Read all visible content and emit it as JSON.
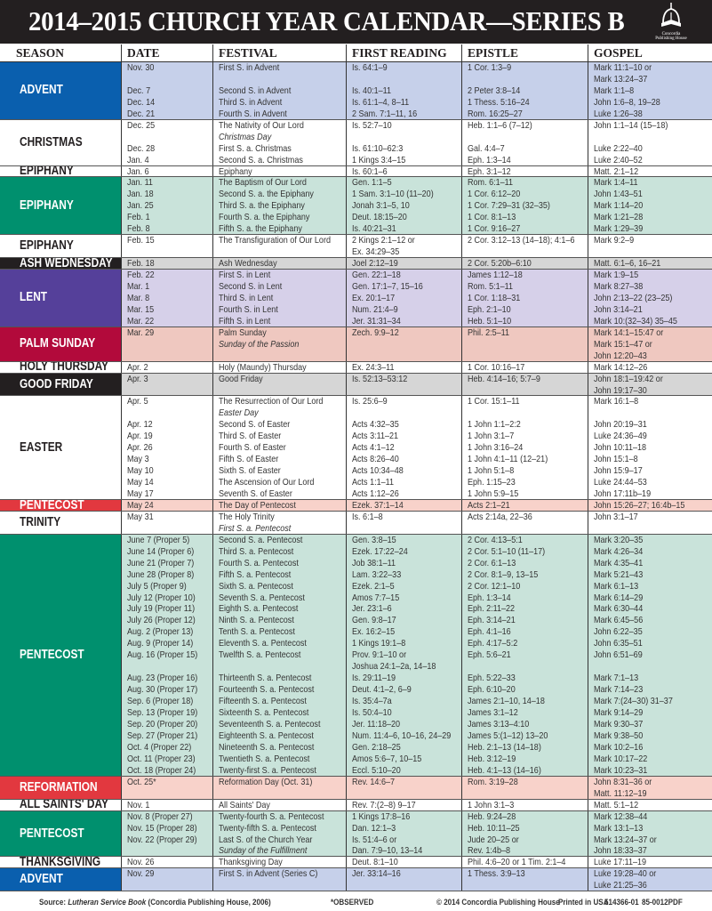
{
  "header": {
    "title": "2014–2015 CHURCH YEAR CALENDAR—SERIES B",
    "logo_text": "Concordia Publishing House"
  },
  "columns": [
    "SEASON",
    "DATE",
    "FESTIVAL",
    "FIRST READING",
    "EPISTLE",
    "GOSPEL"
  ],
  "themes": {
    "advent": {
      "season_bg": "#0a5fae",
      "season_fg": "#ffffff",
      "row_bg": "#c6d0ea"
    },
    "white": {
      "season_bg": "#ffffff",
      "season_fg": "#231f20",
      "row_bg": "#ffffff"
    },
    "green": {
      "season_bg": "#00906e",
      "season_fg": "#ffffff",
      "row_bg": "#c9e3da"
    },
    "black": {
      "season_bg": "#231f20",
      "season_fg": "#ffffff",
      "row_bg": "#d6d6d6"
    },
    "lent": {
      "season_bg": "#55409a",
      "season_fg": "#ffffff",
      "row_bg": "#d6d0e9"
    },
    "palm": {
      "season_bg": "#b20a3b",
      "season_fg": "#ffffff",
      "row_bg": "#efc8c0"
    },
    "red": {
      "season_bg": "#e2383f",
      "season_fg": "#ffffff",
      "row_bg": "#f8d2ca"
    }
  },
  "sections": [
    {
      "season": "ADVENT",
      "theme": "advent",
      "dates": [
        "Nov. 30",
        "",
        "Dec. 7",
        "Dec. 14",
        "Dec. 21"
      ],
      "festivals": [
        "First S. in Advent",
        "",
        "Second S. in Advent",
        "Third S. in Advent",
        "Fourth S. in Advent"
      ],
      "first_reading": [
        "Is. 64:1–9",
        "",
        "Is. 40:1–11",
        "Is. 61:1–4, 8–11",
        "2 Sam. 7:1–11, 16"
      ],
      "epistle": [
        "1 Cor. 1:3–9",
        "",
        "2 Peter 3:8–14",
        "1 Thess. 5:16–24",
        "Rom. 16:25–27"
      ],
      "gospel": [
        "Mark 11:1–10 or",
        "Mark 13:24–37",
        "Mark 1:1–8",
        "John 1:6–8, 19–28",
        "Luke 1:26–38"
      ]
    },
    {
      "season": "CHRISTMAS",
      "theme": "white",
      "dates": [
        "Dec. 25",
        "",
        "Dec. 28",
        "Jan. 4"
      ],
      "festivals": [
        "The Nativity of Our Lord",
        {
          "text": "Christmas Day",
          "italic": true
        },
        "First S. a. Christmas",
        "Second S. a. Christmas"
      ],
      "first_reading": [
        "Is. 52:7–10",
        "",
        "Is. 61:10–62:3",
        "1 Kings 3:4–15"
      ],
      "epistle": [
        "Heb. 1:1–6 (7–12)",
        "",
        "Gal. 4:4–7",
        "Eph. 1:3–14"
      ],
      "gospel": [
        "John 1:1–14 (15–18)",
        "",
        "Luke 2:22–40",
        "Luke 2:40–52"
      ]
    },
    {
      "season": "EPIPHANY",
      "theme": "white",
      "dates": [
        "Jan. 6"
      ],
      "festivals": [
        "Epiphany"
      ],
      "first_reading": [
        "Is. 60:1–6"
      ],
      "epistle": [
        "Eph. 3:1–12"
      ],
      "gospel": [
        "Matt. 2:1–12"
      ]
    },
    {
      "season": "EPIPHANY",
      "theme": "green",
      "dates": [
        "Jan. 11",
        "Jan. 18",
        "Jan. 25",
        "Feb. 1",
        "Feb. 8"
      ],
      "festivals": [
        "The Baptism of Our Lord",
        "Second S. a. the Epiphany",
        "Third S. a. the Epiphany",
        "Fourth S. a. the Epiphany",
        "Fifth S. a. the Epiphany"
      ],
      "first_reading": [
        "Gen. 1:1–5",
        "1 Sam. 3:1–10 (11–20)",
        "Jonah 3:1–5, 10",
        "Deut. 18:15–20",
        "Is. 40:21–31"
      ],
      "epistle": [
        "Rom. 6:1–11",
        "1 Cor. 6:12–20",
        "1 Cor. 7:29–31 (32–35)",
        "1 Cor. 8:1–13",
        "1 Cor. 9:16–27"
      ],
      "gospel": [
        "Mark 1:4–11",
        "John 1:43–51",
        "Mark 1:14–20",
        "Mark 1:21–28",
        "Mark 1:29–39"
      ]
    },
    {
      "season": "EPIPHANY",
      "theme": "white",
      "dates": [
        "Feb. 15",
        ""
      ],
      "festivals": [
        "The Transfiguration of Our Lord",
        ""
      ],
      "first_reading": [
        "2 Kings 2:1–12 or",
        "Ex. 34:29–35"
      ],
      "epistle": [
        "2 Cor. 3:12–13 (14–18); 4:1–6",
        ""
      ],
      "gospel": [
        "Mark 9:2–9",
        ""
      ]
    },
    {
      "season": "ASH WEDNESDAY",
      "theme": "black",
      "dates": [
        "Feb. 18"
      ],
      "festivals": [
        "Ash Wednesday"
      ],
      "first_reading": [
        "Joel 2:12–19"
      ],
      "epistle": [
        "2 Cor. 5:20b–6:10"
      ],
      "gospel": [
        "Matt. 6:1–6, 16–21"
      ]
    },
    {
      "season": "LENT",
      "theme": "lent",
      "dates": [
        "Feb. 22",
        "Mar. 1",
        "Mar. 8",
        "Mar. 15",
        "Mar. 22"
      ],
      "festivals": [
        "First S. in Lent",
        "Second S. in Lent",
        "Third S. in Lent",
        "Fourth S. in Lent",
        "Fifth S. in Lent"
      ],
      "first_reading": [
        "Gen. 22:1–18",
        "Gen. 17:1–7, 15–16",
        "Ex. 20:1–17",
        "Num. 21:4–9",
        "Jer. 31:31–34"
      ],
      "epistle": [
        "James 1:12–18",
        "Rom. 5:1–11",
        "1 Cor. 1:18–31",
        "Eph. 2:1–10",
        "Heb. 5:1–10"
      ],
      "gospel": [
        "Mark 1:9–15",
        "Mark 8:27–38",
        "John 2:13–22 (23–25)",
        "John 3:14–21",
        "Mark 10:(32–34) 35–45"
      ]
    },
    {
      "season": "PALM SUNDAY",
      "theme": "palm",
      "dates": [
        "Mar. 29",
        "",
        ""
      ],
      "festivals": [
        "Palm Sunday",
        {
          "text": "Sunday of the Passion",
          "italic": true
        },
        ""
      ],
      "first_reading": [
        "Zech. 9:9–12",
        "",
        ""
      ],
      "epistle": [
        "Phil. 2:5–11",
        "",
        ""
      ],
      "gospel": [
        "Mark 14:1–15:47 or",
        "Mark 15:1–47 or",
        "John 12:20–43"
      ]
    },
    {
      "season": "HOLY THURSDAY",
      "theme": "white",
      "dates": [
        "Apr. 2"
      ],
      "festivals": [
        "Holy (Maundy) Thursday"
      ],
      "first_reading": [
        "Ex. 24:3–11"
      ],
      "epistle": [
        "1 Cor. 10:16–17"
      ],
      "gospel": [
        "Mark 14:12–26"
      ]
    },
    {
      "season": "GOOD FRIDAY",
      "theme": "black",
      "dates": [
        "Apr. 3",
        ""
      ],
      "festivals": [
        "Good Friday",
        ""
      ],
      "first_reading": [
        "Is. 52:13–53:12",
        ""
      ],
      "epistle": [
        "Heb. 4:14–16; 5:7–9",
        ""
      ],
      "gospel": [
        "John 18:1–19:42 or",
        "John 19:17–30"
      ]
    },
    {
      "season": "EASTER",
      "theme": "white",
      "dates": [
        "Apr. 5",
        "",
        "Apr. 12",
        "Apr. 19",
        "Apr. 26",
        "May 3",
        "May 10",
        "May 14",
        "May 17"
      ],
      "festivals": [
        "The Resurrection of Our Lord",
        {
          "text": "Easter Day",
          "italic": true
        },
        "Second S. of Easter",
        "Third S. of Easter",
        "Fourth S. of Easter",
        "Fifth S. of Easter",
        "Sixth S. of Easter",
        "The Ascension of Our Lord",
        "Seventh S. of Easter"
      ],
      "first_reading": [
        "Is. 25:6–9",
        "",
        "Acts 4:32–35",
        "Acts 3:11–21",
        "Acts 4:1–12",
        "Acts 8:26–40",
        "Acts 10:34–48",
        "Acts 1:1–11",
        "Acts 1:12–26"
      ],
      "epistle": [
        "1 Cor. 15:1–11",
        "",
        "1 John 1:1–2:2",
        "1 John 3:1–7",
        "1 John 3:16–24",
        "1 John 4:1–11 (12–21)",
        "1 John 5:1–8",
        "Eph. 1:15–23",
        "1 John 5:9–15"
      ],
      "gospel": [
        "Mark 16:1–8",
        "",
        "John 20:19–31",
        "Luke 24:36–49",
        "John 10:11–18",
        "John 15:1–8",
        "John 15:9–17",
        "Luke 24:44–53",
        "John 17:11b–19"
      ]
    },
    {
      "season": "PENTECOST",
      "theme": "red",
      "dates": [
        "May 24"
      ],
      "festivals": [
        "The Day of Pentecost"
      ],
      "first_reading": [
        "Ezek. 37:1–14"
      ],
      "epistle": [
        "Acts 2:1–21"
      ],
      "gospel": [
        "John 15:26–27; 16:4b–15"
      ]
    },
    {
      "season": "TRINITY",
      "theme": "white",
      "dates": [
        "May 31",
        ""
      ],
      "festivals": [
        "The Holy Trinity",
        {
          "text": "First S. a. Pentecost",
          "italic": true
        }
      ],
      "first_reading": [
        "Is. 6:1–8",
        ""
      ],
      "epistle": [
        "Acts 2:14a, 22–36",
        ""
      ],
      "gospel": [
        "John 3:1–17",
        ""
      ]
    },
    {
      "season": "PENTECOST",
      "theme": "green",
      "dates": [
        "June 7 (Proper 5)",
        "June 14 (Proper 6)",
        "June 21 (Proper 7)",
        "June 28 (Proper 8)",
        "July 5 (Proper 9)",
        "July 12 (Proper 10)",
        "July 19 (Proper 11)",
        "July 26 (Proper 12)",
        "Aug. 2 (Proper 13)",
        "Aug. 9 (Proper 14)",
        "Aug. 16 (Proper 15)",
        "",
        "Aug. 23 (Proper 16)",
        "Aug. 30 (Proper 17)",
        "Sep. 6 (Proper 18)",
        "Sep. 13 (Proper 19)",
        "Sep. 20 (Proper 20)",
        "Sep. 27 (Proper 21)",
        "Oct. 4 (Proper 22)",
        "Oct. 11 (Proper 23)",
        "Oct. 18 (Proper 24)"
      ],
      "festivals": [
        "Second S. a. Pentecost",
        "Third S. a. Pentecost",
        "Fourth S. a. Pentecost",
        "Fifth S. a. Pentecost",
        "Sixth S. a. Pentecost",
        "Seventh S. a. Pentecost",
        "Eighth S. a. Pentecost",
        "Ninth S. a. Pentecost",
        "Tenth S. a. Pentecost",
        "Eleventh S. a. Pentecost",
        "Twelfth S. a. Pentecost",
        "",
        "Thirteenth S. a. Pentecost",
        "Fourteenth S. a. Pentecost",
        "Fifteenth S. a. Pentecost",
        "Sixteenth S. a. Pentecost",
        "Seventeenth S. a. Pentecost",
        "Eighteenth S. a. Pentecost",
        "Nineteenth S. a. Pentecost",
        "Twentieth S. a. Pentecost",
        "Twenty-first S. a. Pentecost"
      ],
      "first_reading": [
        "Gen. 3:8–15",
        "Ezek. 17:22–24",
        "Job 38:1–11",
        "Lam. 3:22–33",
        "Ezek. 2:1–5",
        "Amos 7:7–15",
        "Jer. 23:1–6",
        "Gen. 9:8–17",
        "Ex. 16:2–15",
        "1 Kings 19:1–8",
        "Prov. 9:1–10 or",
        "Joshua 24:1–2a, 14–18",
        "Is. 29:11–19",
        "Deut. 4:1–2, 6–9",
        "Is. 35:4–7a",
        "Is. 50:4–10",
        "Jer. 11:18–20",
        "Num. 11:4–6, 10–16, 24–29",
        "Gen. 2:18–25",
        "Amos 5:6–7, 10–15",
        "Eccl. 5:10–20"
      ],
      "epistle": [
        "2 Cor. 4:13–5:1",
        "2 Cor. 5:1–10 (11–17)",
        "2 Cor. 6:1–13",
        "2 Cor. 8:1–9, 13–15",
        "2 Cor. 12:1–10",
        "Eph. 1:3–14",
        "Eph. 2:11–22",
        "Eph. 3:14–21",
        "Eph. 4:1–16",
        "Eph. 4:17–5:2",
        "Eph. 5:6–21",
        "",
        "Eph. 5:22–33",
        "Eph. 6:10–20",
        "James 2:1–10, 14–18",
        "James 3:1–12",
        "James 3:13–4:10",
        "James 5:(1–12) 13–20",
        "Heb. 2:1–13 (14–18)",
        "Heb. 3:12–19",
        "Heb. 4:1–13 (14–16)"
      ],
      "gospel": [
        "Mark 3:20–35",
        "Mark 4:26–34",
        "Mark 4:35–41",
        "Mark 5:21–43",
        "Mark 6:1–13",
        "Mark 6:14–29",
        "Mark 6:30–44",
        "Mark 6:45–56",
        "John 6:22–35",
        "John 6:35–51",
        "John 6:51–69",
        "",
        "Mark 7:1–13",
        "Mark 7:14–23",
        "Mark 7:(24–30) 31–37",
        "Mark 9:14–29",
        "Mark 9:30–37",
        "Mark 9:38–50",
        "Mark 10:2–16",
        "Mark 10:17–22",
        "Mark 10:23–31"
      ]
    },
    {
      "season": "REFORMATION",
      "theme": "red",
      "dates": [
        "Oct. 25*",
        ""
      ],
      "festivals": [
        "Reformation Day (Oct. 31)",
        ""
      ],
      "first_reading": [
        "Rev. 14:6–7",
        ""
      ],
      "epistle": [
        "Rom. 3:19–28",
        ""
      ],
      "gospel": [
        "John 8:31–36 or",
        "Matt. 11:12–19"
      ]
    },
    {
      "season": "ALL SAINTS' DAY",
      "theme": "white",
      "dates": [
        "Nov. 1"
      ],
      "festivals": [
        "All Saints' Day"
      ],
      "first_reading": [
        "Rev. 7:(2–8) 9–17"
      ],
      "epistle": [
        "1 John 3:1–3"
      ],
      "gospel": [
        "Matt. 5:1–12"
      ]
    },
    {
      "season": "PENTECOST",
      "theme": "green",
      "dates": [
        "Nov. 8 (Proper 27)",
        "Nov. 15 (Proper 28)",
        "Nov. 22 (Proper 29)",
        ""
      ],
      "festivals": [
        "Twenty-fourth S. a. Pentecost",
        "Twenty-fifth S. a. Pentecost",
        "Last S. of the Church Year",
        {
          "text": "Sunday of the Fulfillment",
          "italic": true
        }
      ],
      "first_reading": [
        "1 Kings 17:8–16",
        "Dan. 12:1–3",
        "Is. 51:4–6 or",
        "Dan. 7:9–10, 13–14"
      ],
      "epistle": [
        "Heb. 9:24–28",
        "Heb. 10:11–25",
        "Jude 20–25 or",
        "Rev. 1:4b–8"
      ],
      "gospel": [
        "Mark 12:38–44",
        "Mark 13:1–13",
        "Mark 13:24–37 or",
        "John 18:33–37"
      ]
    },
    {
      "season": "THANKSGIVING",
      "theme": "white",
      "dates": [
        "Nov. 26"
      ],
      "festivals": [
        "Thanksgiving Day"
      ],
      "first_reading": [
        "Deut. 8:1–10"
      ],
      "epistle": [
        "Phil. 4:6–20 or 1 Tim. 2:1–4"
      ],
      "gospel": [
        "Luke 17:11–19"
      ]
    },
    {
      "season": "ADVENT",
      "theme": "advent",
      "dates": [
        "Nov. 29",
        ""
      ],
      "festivals": [
        "First S. in Advent (Series C)",
        ""
      ],
      "first_reading": [
        "Jer. 33:14–16",
        ""
      ],
      "epistle": [
        "1 Thess. 3:9–13",
        ""
      ],
      "gospel": [
        "Luke 19:28–40 or",
        "Luke 21:25–36"
      ]
    }
  ],
  "footer": {
    "source_prefix": "Source:",
    "source_book": "Lutheran Service Book",
    "source_rest": "(Concordia Publishing House, 2006)",
    "observed_note": "*OBSERVED",
    "copyright": "© 2014 Concordia Publishing House",
    "printed": "Printed in USA",
    "code1": "514366-01",
    "code2": "85-0012PDF"
  }
}
